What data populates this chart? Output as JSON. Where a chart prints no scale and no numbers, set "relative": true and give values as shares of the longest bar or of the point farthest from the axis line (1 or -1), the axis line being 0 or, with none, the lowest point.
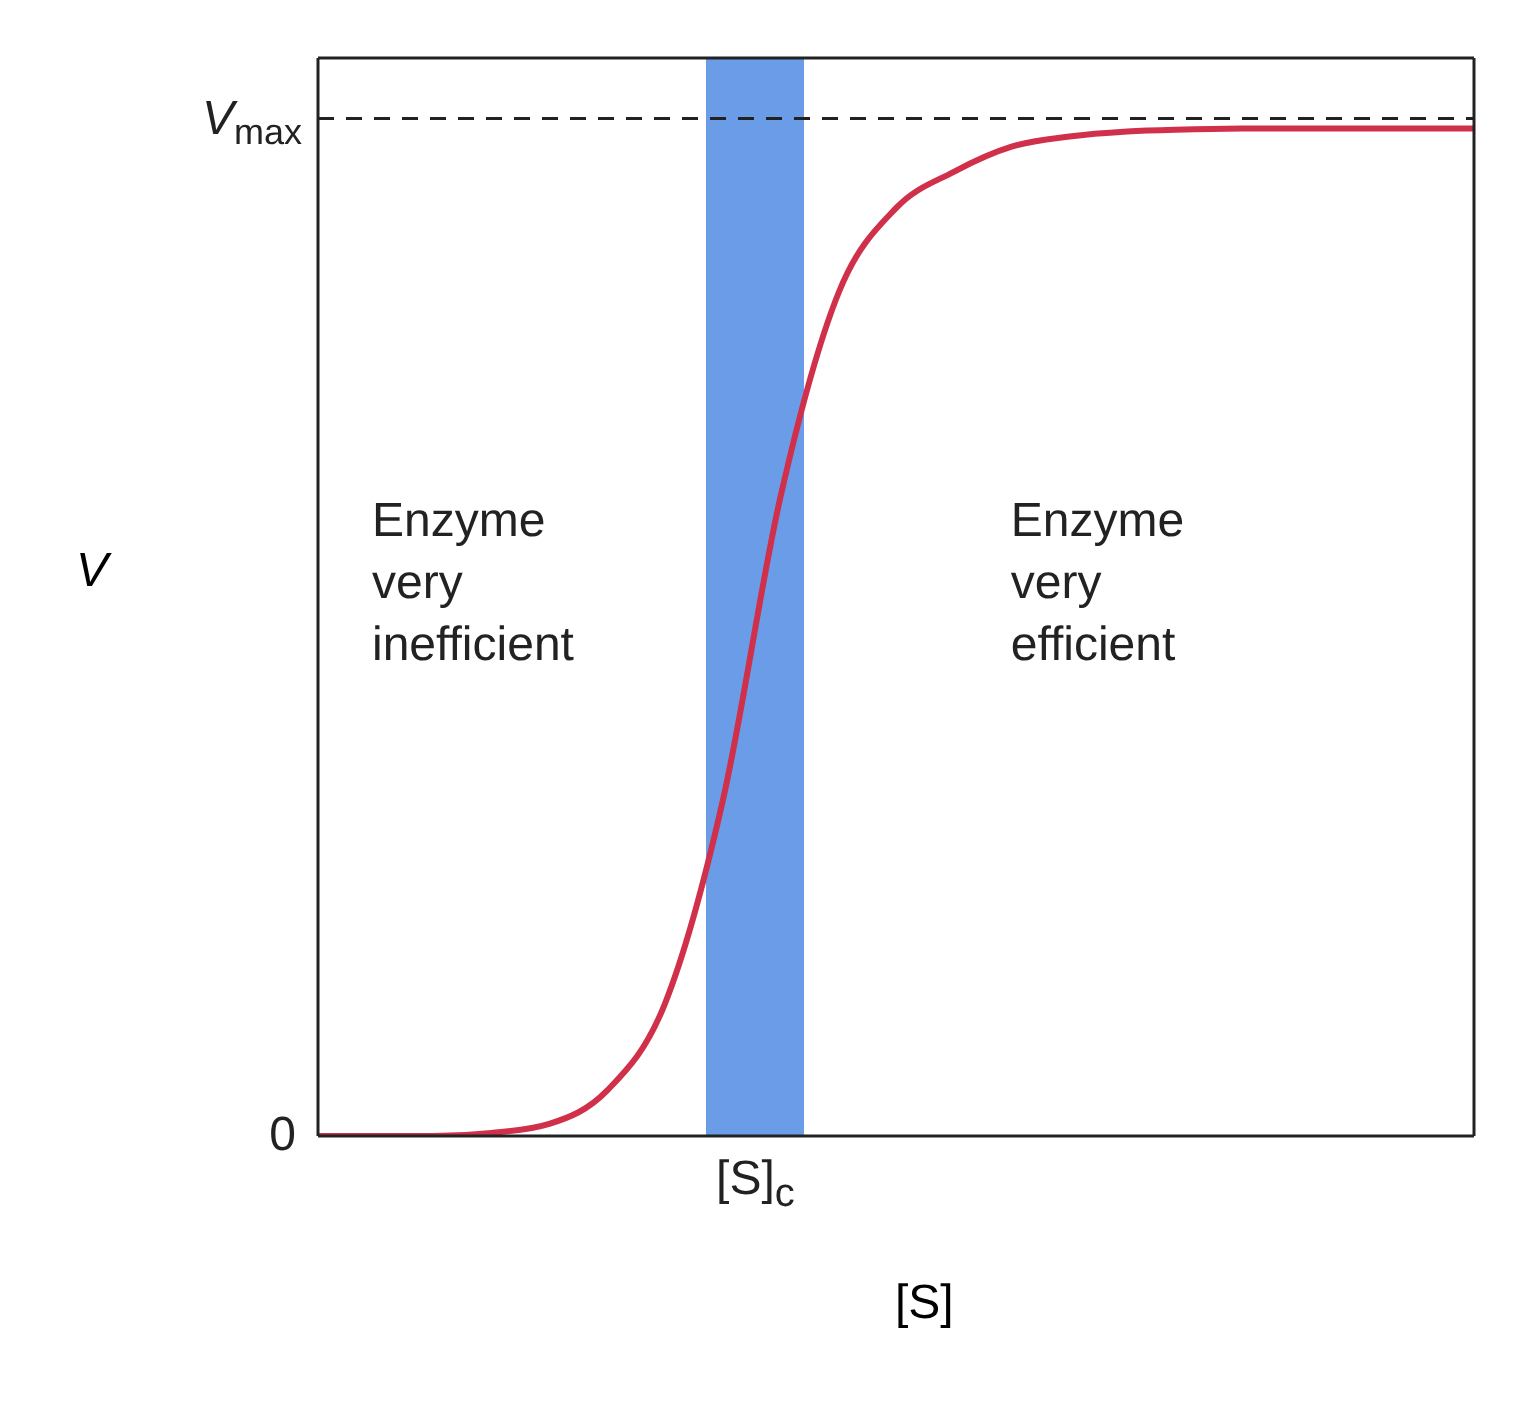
{
  "chart_data": {
    "type": "line",
    "xlabel": "[S]",
    "ylabel": "V",
    "relative": true,
    "categories": [
      null,
      null,
      null,
      null,
      null,
      null,
      null,
      null,
      null,
      null,
      null,
      null,
      null,
      null,
      null,
      null,
      null,
      null,
      null,
      null,
      null
    ],
    "series": [
      {
        "color": "#d0304a",
        "values": [
          0,
          0,
          0,
          0.003,
          0.012,
          0.045,
          0.131,
          0.332,
          0.634,
          0.836,
          0.921,
          0.957,
          0.982,
          0.992,
          0.997,
          0.999,
          1,
          1,
          1,
          1,
          1
        ]
      }
    ],
    "ref_lines": [
      {
        "axis": "y",
        "value": 1.01,
        "label": "V$_{max}$",
        "color": "#222222",
        "line_style": "dashed"
      }
    ],
    "annotations": [
      "0",
      "[S]$_{c}$",
      "Enzyme\nvery\ninefficient",
      "Enzyme\nvery\nefficient"
    ],
    "marker": "none",
    "line_style": "solid"
  }
}
